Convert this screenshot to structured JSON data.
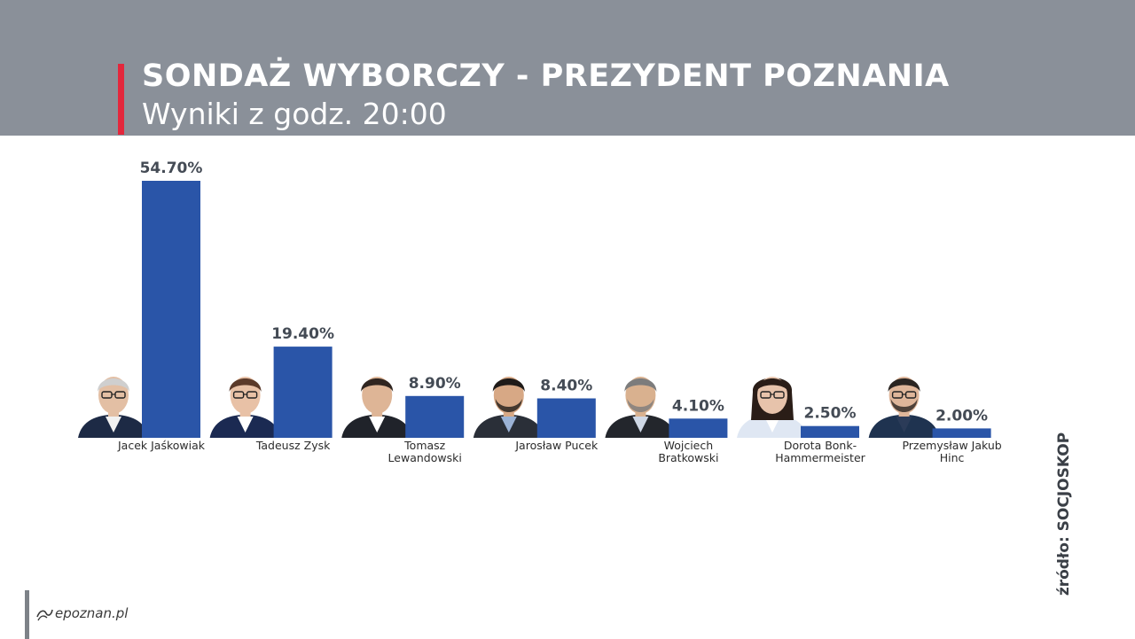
{
  "header": {
    "title": "SONDAŻ WYBORCZY - PREZYDENT POZNANIA",
    "subtitle": "Wyniki z godz. 20:00"
  },
  "source": "źródło: SOCJOSKOP",
  "logo": "epoznan.pl",
  "colors": {
    "header_bg": "#8a9099",
    "accent": "#e3273c",
    "bar": "#2a55a8"
  },
  "chart_data": {
    "type": "bar",
    "title": "SONDAŻ WYBORCZY - PREZYDENT POZNANIA",
    "subtitle": "Wyniki z godz. 20:00",
    "categories": [
      "Jacek Jaśkowiak",
      "Tadeusz Zysk",
      "Tomasz Lewandowski",
      "Jarosław Pucek",
      "Wojciech Bratkowski",
      "Dorota Bonk-Hammermeister",
      "Przemysław Jakub Hinc"
    ],
    "category_label_lines": [
      [
        "Jacek Jaśkowiak"
      ],
      [
        "Tadeusz Zysk"
      ],
      [
        "Tomasz",
        "Lewandowski"
      ],
      [
        "Jarosław Pucek"
      ],
      [
        "Wojciech",
        "Bratkowski"
      ],
      [
        "Dorota Bonk-",
        "Hammermeister"
      ],
      [
        "Przemysław Jakub",
        "Hinc"
      ]
    ],
    "values": [
      54.7,
      19.4,
      8.9,
      8.4,
      4.1,
      2.5,
      2.0
    ],
    "value_labels": [
      "54.70%",
      "19.40%",
      "8.90%",
      "8.40%",
      "4.10%",
      "2.50%",
      "2.00%"
    ],
    "unit": "%",
    "ylim": [
      0,
      54.7
    ],
    "grid": false,
    "legend": "none"
  }
}
